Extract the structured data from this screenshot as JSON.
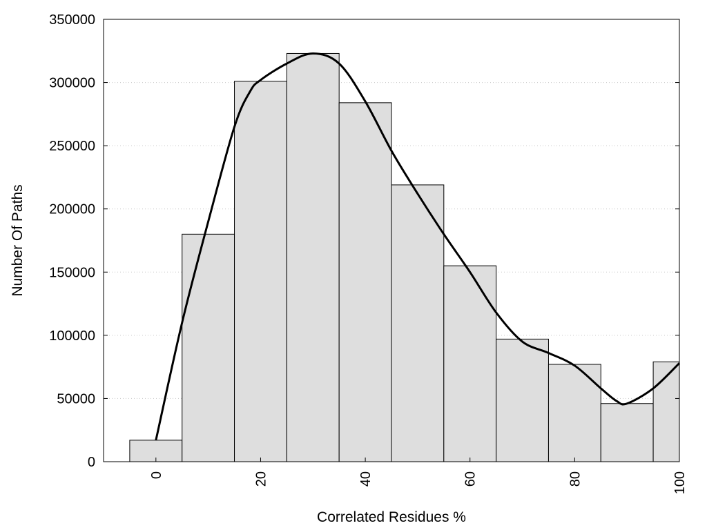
{
  "chart_data": {
    "type": "bar",
    "xlabel": "Correlated Residues %",
    "ylabel": "Number Of Paths",
    "xlim": [
      -10,
      100
    ],
    "ylim": [
      0,
      350000
    ],
    "x_ticks": [
      0,
      20,
      40,
      60,
      80,
      100
    ],
    "y_ticks": [
      0,
      50000,
      100000,
      150000,
      200000,
      250000,
      300000,
      350000
    ],
    "bin_width": 10,
    "grid": "horizontal-dotted",
    "bins": [
      {
        "center": 0,
        "value": 17000
      },
      {
        "center": 10,
        "value": 180000
      },
      {
        "center": 20,
        "value": 301000
      },
      {
        "center": 30,
        "value": 323000
      },
      {
        "center": 40,
        "value": 284000
      },
      {
        "center": 50,
        "value": 219000
      },
      {
        "center": 60,
        "value": 155000
      },
      {
        "center": 70,
        "value": 97000
      },
      {
        "center": 80,
        "value": 77000
      },
      {
        "center": 90,
        "value": 46000
      },
      {
        "center": 100,
        "value": 79000
      }
    ],
    "smooth_curve": {
      "x": [
        0,
        5,
        10,
        15,
        18,
        20,
        25,
        30,
        35,
        40,
        45,
        50,
        55,
        60,
        65,
        70,
        75,
        80,
        85,
        88,
        90,
        95,
        100
      ],
      "y": [
        17000,
        110000,
        190000,
        265000,
        293000,
        302000,
        315000,
        323000,
        315000,
        285000,
        246000,
        212000,
        180000,
        150000,
        118000,
        95000,
        86000,
        76000,
        58000,
        48000,
        46000,
        58000,
        78000
      ]
    }
  }
}
